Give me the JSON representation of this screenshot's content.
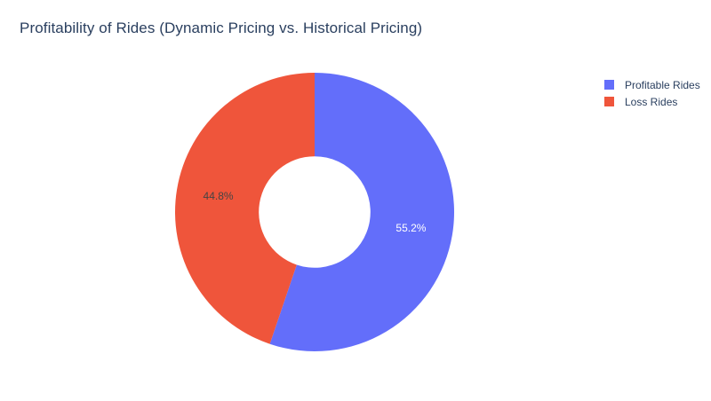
{
  "chart_data": {
    "type": "pie",
    "hole": 0.4,
    "title": "Profitability of Rides (Dynamic Pricing vs. Historical Pricing)",
    "categories": [
      "Profitable Rides",
      "Loss Rides"
    ],
    "values": [
      55.2,
      44.8
    ],
    "value_labels": [
      "55.2%",
      "44.8%"
    ],
    "colors": [
      "#636efa",
      "#ef553b"
    ],
    "label_colors": [
      "#ffffff",
      "#444444"
    ],
    "legend_position": "top-right"
  }
}
